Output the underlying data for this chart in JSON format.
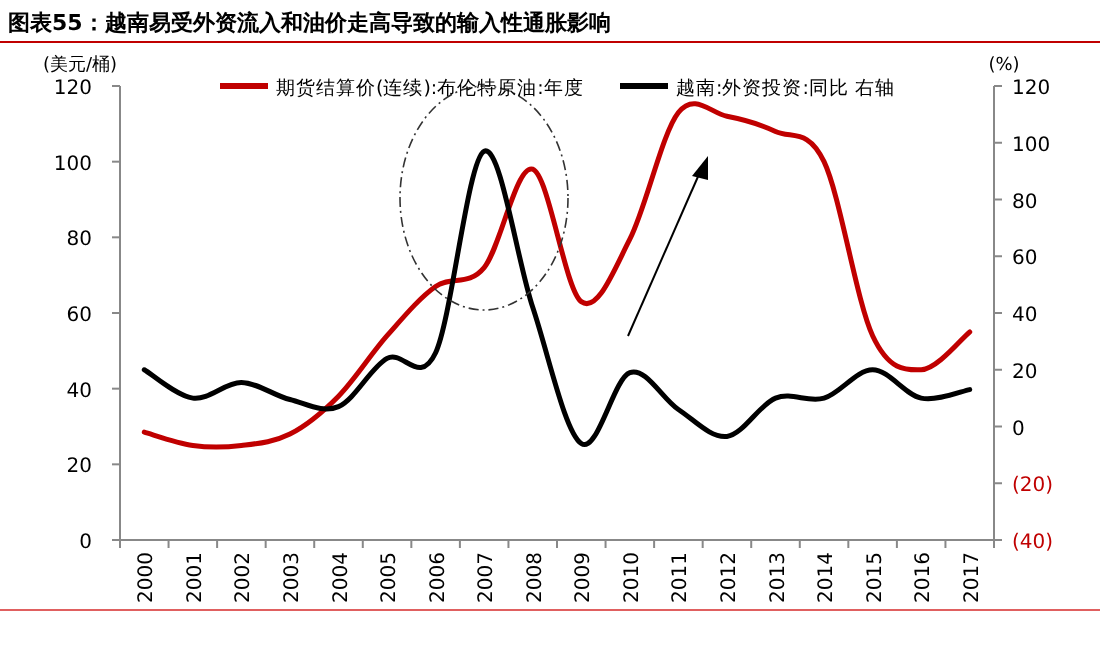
{
  "chart_data": {
    "type": "line",
    "title": "图表55：越南易受外资流入和油价走高导致的输入性通胀影响",
    "ylabel": "(美元/桶)",
    "y2label": "(%)",
    "categories": [
      "2000",
      "2001",
      "2002",
      "2003",
      "2004",
      "2005",
      "2006",
      "2007",
      "2008",
      "2009",
      "2010",
      "2011",
      "2012",
      "2013",
      "2014",
      "2015",
      "2016",
      "2017"
    ],
    "series": [
      {
        "name": "期货结算价(连续):布伦特原油:年度",
        "color": "#c00000",
        "values": [
          28.5,
          25,
          25,
          28,
          38,
          54,
          67,
          72,
          98,
          63,
          79.5,
          113,
          112,
          108,
          100,
          54,
          45,
          55
        ]
      },
      {
        "name": "越南:外资投资:同比 右轴",
        "color": "#000000",
        "axis": "y2",
        "values": [
          20,
          10,
          15.5,
          9.5,
          7,
          24,
          26,
          97,
          42,
          -6,
          19,
          6,
          -3.5,
          10,
          10,
          20,
          10,
          13
        ]
      }
    ],
    "ylim": [
      0,
      120
    ],
    "yticks": [
      0,
      20,
      40,
      60,
      80,
      100,
      120
    ],
    "y2lim": [
      -40,
      120
    ],
    "y2ticks": [
      {
        "value": -40,
        "label": "(40)"
      },
      {
        "value": -20,
        "label": "(20)"
      },
      0,
      20,
      40,
      60,
      80,
      100,
      120
    ],
    "legend": "top",
    "grid": false
  }
}
